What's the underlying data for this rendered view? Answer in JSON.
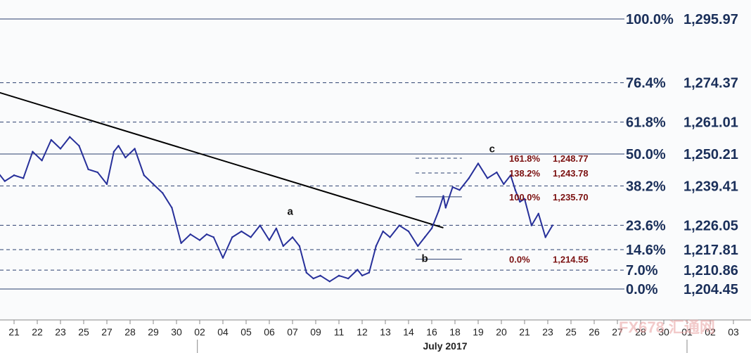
{
  "chart_data": {
    "type": "line",
    "title": "",
    "xlabel": "",
    "ylabel": "",
    "grid": false,
    "month_label": "July 2017",
    "x_ticks": [
      "21",
      "22",
      "23",
      "25",
      "27",
      "28",
      "29",
      "30",
      "02",
      "04",
      "05",
      "06",
      "07",
      "09",
      "11",
      "12",
      "13",
      "14",
      "16",
      "18",
      "19",
      "20",
      "21",
      "23",
      "25",
      "26",
      "27",
      "28",
      "30",
      "01",
      "02",
      "03"
    ],
    "fib_levels": [
      {
        "pct": "100.0%",
        "value": "1,295.97",
        "price": 1295.97
      },
      {
        "pct": "76.4%",
        "value": "1,274.37",
        "price": 1274.37
      },
      {
        "pct": "61.8%",
        "value": "1,261.01",
        "price": 1261.01
      },
      {
        "pct": "50.0%",
        "value": "1,250.21",
        "price": 1250.21
      },
      {
        "pct": "38.2%",
        "value": "1,239.41",
        "price": 1239.41
      },
      {
        "pct": "23.6%",
        "value": "1,226.05",
        "price": 1226.05
      },
      {
        "pct": "14.6%",
        "value": "1,217.81",
        "price": 1217.81
      },
      {
        "pct": "7.0%",
        "value": "1,210.86",
        "price": 1210.86
      },
      {
        "pct": "0.0%",
        "value": "1,204.45",
        "price": 1204.45
      }
    ],
    "projection_levels": [
      {
        "pct": "161.8%",
        "value": "1,248.77",
        "price": 1248.77
      },
      {
        "pct": "138.2%",
        "value": "1,243.78",
        "price": 1243.78
      },
      {
        "pct": "100.0%",
        "value": "1,235.70",
        "price": 1235.7
      },
      {
        "pct": "0.0%",
        "value": "1,214.55",
        "price": 1214.55
      }
    ],
    "wave_labels": [
      {
        "text": "a",
        "x_index": 11.9,
        "price": 1229.6
      },
      {
        "text": "b",
        "x_index": 17.7,
        "price": 1213.6
      },
      {
        "text": "c",
        "x_index": 20.6,
        "price": 1250.8
      }
    ],
    "trendline": {
      "start": {
        "x_index": -0.7,
        "price": 1271.2
      },
      "end": {
        "x_index": 18.5,
        "price": 1225.2
      }
    },
    "series": [
      {
        "x_index": [
          -0.7,
          -0.4,
          0.0,
          0.4,
          0.8,
          1.2,
          1.6,
          2.0,
          2.4,
          2.8,
          3.2,
          3.6,
          4.0,
          4.3,
          4.5,
          4.8,
          5.2,
          5.6,
          6.0,
          6.4,
          6.8,
          7.2,
          7.6,
          8.0,
          8.3,
          8.6,
          9.0,
          9.4,
          9.8,
          10.2,
          10.6,
          11.0,
          11.3,
          11.6,
          12.0,
          12.3,
          12.6,
          12.9,
          13.2,
          13.6,
          14.0,
          14.4,
          14.8,
          15.0,
          15.3,
          15.6,
          15.9,
          16.2,
          16.6,
          17.0,
          17.4,
          17.7,
          18.0,
          18.3,
          18.5,
          18.6,
          18.9,
          19.2,
          19.6,
          20.0,
          20.4,
          20.8,
          21.1,
          21.4,
          21.6,
          21.8,
          22.0,
          22.3,
          22.6,
          22.9,
          23.2
        ],
        "values": [
          1244,
          1241,
          1243,
          1242,
          1251,
          1248,
          1255,
          1252,
          1256,
          1253,
          1245,
          1244,
          1240,
          1251,
          1253,
          1249,
          1252,
          1243,
          1240,
          1237,
          1232,
          1220,
          1223,
          1221,
          1223,
          1222,
          1215,
          1222,
          1224,
          1222,
          1226,
          1221,
          1225,
          1219,
          1222,
          1219,
          1210,
          1208,
          1209,
          1207,
          1209,
          1208,
          1211,
          1209,
          1210,
          1219,
          1224,
          1222,
          1226,
          1224,
          1219,
          1222,
          1225,
          1231,
          1236,
          1232,
          1239,
          1238,
          1242,
          1247,
          1242,
          1244,
          1240,
          1243,
          1238,
          1234,
          1235,
          1226,
          1230,
          1222,
          1226
        ]
      }
    ],
    "watermark": "FX678 汇通网"
  }
}
